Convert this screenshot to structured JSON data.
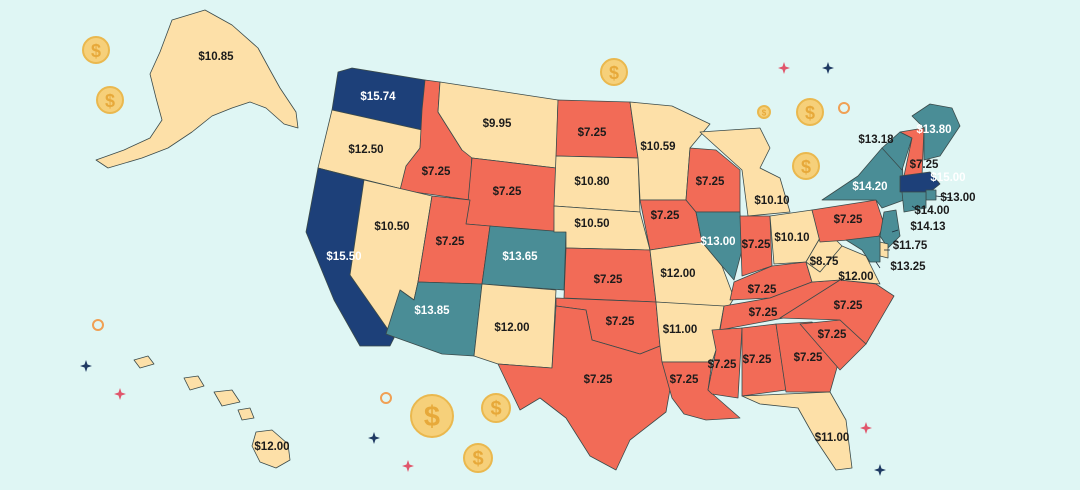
{
  "colors": {
    "background": "#dff6f4",
    "federal_min": "#f26b57",
    "above_federal": "#fde0a8",
    "mid_high": "#4a8d96",
    "highest": "#1d4079",
    "coin": "#f6d07a",
    "sparkle_red": "#e0566b",
    "sparkle_navy": "#1f3a63",
    "ring_orange": "#f0a054"
  },
  "decor": {
    "coin_icon": "dollar-coin-icon",
    "sparkle_icon": "sparkle-icon",
    "ring_icon": "ring-icon",
    "coin_glyph": "$"
  },
  "states": [
    {
      "id": "AK",
      "label": "$10.85",
      "tier": "above"
    },
    {
      "id": "HI",
      "label": "$12.00",
      "tier": "above"
    },
    {
      "id": "WA",
      "label": "$15.74",
      "tier": "highest"
    },
    {
      "id": "OR",
      "label": "$12.50",
      "tier": "above"
    },
    {
      "id": "CA",
      "label": "$15.50",
      "tier": "highest"
    },
    {
      "id": "ID",
      "label": "$7.25",
      "tier": "federal"
    },
    {
      "id": "NV",
      "label": "$10.50",
      "tier": "above"
    },
    {
      "id": "MT",
      "label": "$9.95",
      "tier": "above"
    },
    {
      "id": "WY",
      "label": "$7.25",
      "tier": "federal"
    },
    {
      "id": "UT",
      "label": "$7.25",
      "tier": "federal"
    },
    {
      "id": "AZ",
      "label": "$13.85",
      "tier": "mid"
    },
    {
      "id": "CO",
      "label": "$13.65",
      "tier": "mid"
    },
    {
      "id": "NM",
      "label": "$12.00",
      "tier": "above"
    },
    {
      "id": "ND",
      "label": "$7.25",
      "tier": "federal"
    },
    {
      "id": "SD",
      "label": "$10.80",
      "tier": "above"
    },
    {
      "id": "NE",
      "label": "$10.50",
      "tier": "above"
    },
    {
      "id": "KS",
      "label": "$7.25",
      "tier": "federal"
    },
    {
      "id": "OK",
      "label": "$7.25",
      "tier": "federal"
    },
    {
      "id": "TX",
      "label": "$7.25",
      "tier": "federal"
    },
    {
      "id": "MN",
      "label": "$10.59",
      "tier": "above"
    },
    {
      "id": "IA",
      "label": "$7.25",
      "tier": "federal"
    },
    {
      "id": "MO",
      "label": "$12.00",
      "tier": "above"
    },
    {
      "id": "AR",
      "label": "$11.00",
      "tier": "above"
    },
    {
      "id": "LA",
      "label": "$7.25",
      "tier": "federal"
    },
    {
      "id": "WI",
      "label": "$7.25",
      "tier": "federal"
    },
    {
      "id": "IL",
      "label": "$13.00",
      "tier": "mid"
    },
    {
      "id": "MI",
      "label": "$10.10",
      "tier": "above"
    },
    {
      "id": "IN",
      "label": "$7.25",
      "tier": "federal"
    },
    {
      "id": "OH",
      "label": "$10.10",
      "tier": "above"
    },
    {
      "id": "KY",
      "label": "$7.25",
      "tier": "federal"
    },
    {
      "id": "TN",
      "label": "$7.25",
      "tier": "federal"
    },
    {
      "id": "MS",
      "label": "$7.25",
      "tier": "federal"
    },
    {
      "id": "AL",
      "label": "$7.25",
      "tier": "federal"
    },
    {
      "id": "GA",
      "label": "$7.25",
      "tier": "federal"
    },
    {
      "id": "FL",
      "label": "$11.00",
      "tier": "above"
    },
    {
      "id": "SC",
      "label": "$7.25",
      "tier": "federal"
    },
    {
      "id": "NC",
      "label": "$7.25",
      "tier": "federal"
    },
    {
      "id": "VA",
      "label": "$12.00",
      "tier": "above"
    },
    {
      "id": "WV",
      "label": "$8.75",
      "tier": "above"
    },
    {
      "id": "PA",
      "label": "$7.25",
      "tier": "federal"
    },
    {
      "id": "NY",
      "label": "$14.20",
      "tier": "mid"
    },
    {
      "id": "VT",
      "label": "$13.18",
      "tier": "mid"
    },
    {
      "id": "NH",
      "label": "$7.25",
      "tier": "federal"
    },
    {
      "id": "ME",
      "label": "$13.80",
      "tier": "mid"
    },
    {
      "id": "MA",
      "label": "$15.00",
      "tier": "highest"
    },
    {
      "id": "RI",
      "label": "$13.00",
      "tier": "mid"
    },
    {
      "id": "CT",
      "label": "$14.00",
      "tier": "mid"
    },
    {
      "id": "NJ",
      "label": "$14.13",
      "tier": "mid"
    },
    {
      "id": "DE",
      "label": "$11.75",
      "tier": "above"
    },
    {
      "id": "MD",
      "label": "$13.25",
      "tier": "mid"
    }
  ]
}
